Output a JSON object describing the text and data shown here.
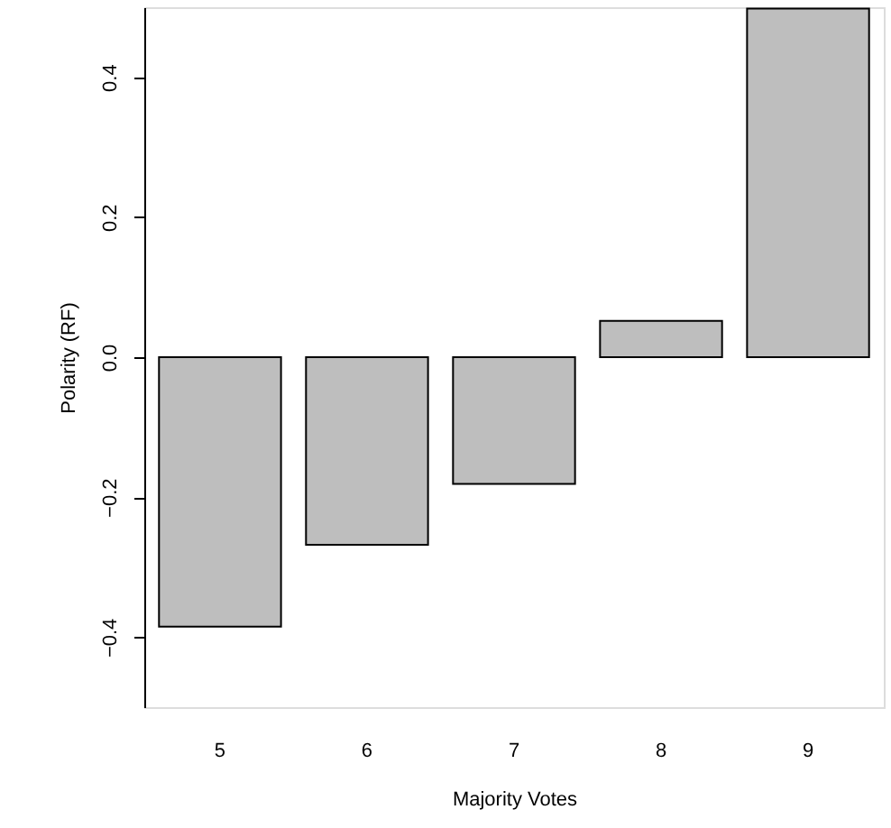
{
  "chart_data": {
    "type": "bar",
    "xlabel": "Majority Votes",
    "ylabel": "Polarity (RF)",
    "categories": [
      "5",
      "6",
      "7",
      "8",
      "9"
    ],
    "values": [
      -0.385,
      -0.268,
      -0.181,
      0.052,
      0.498
    ],
    "color": "#bebebe",
    "ylim": [
      -0.5,
      0.5
    ],
    "yticks": [
      {
        "value": -0.4,
        "label": "−0.4"
      },
      {
        "value": -0.2,
        "label": "−0.2"
      },
      {
        "value": 0,
        "label": "0.0"
      },
      {
        "value": 0.2,
        "label": "0.2"
      },
      {
        "value": 0.4,
        "label": "0.4"
      }
    ],
    "grid": false
  }
}
